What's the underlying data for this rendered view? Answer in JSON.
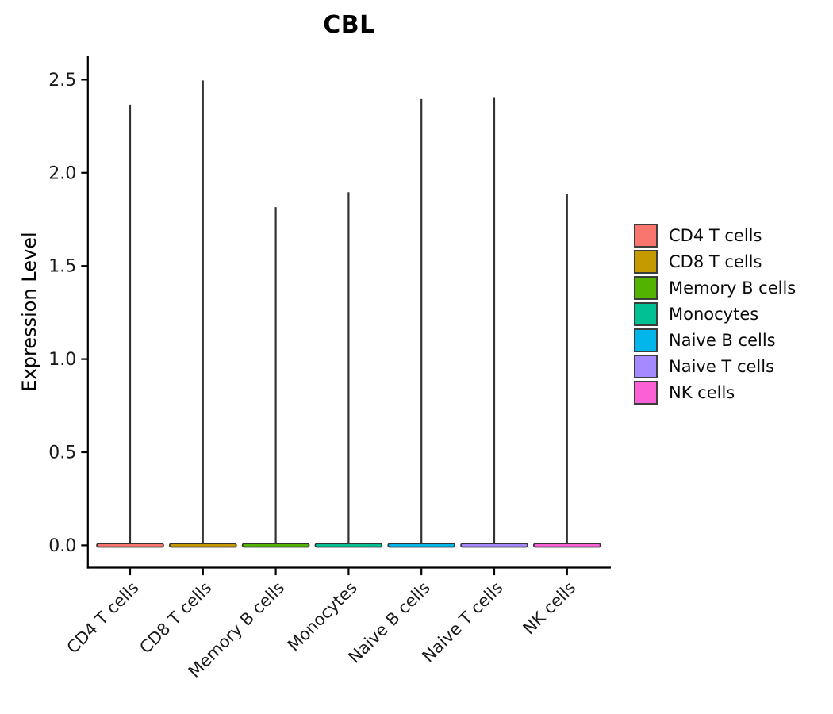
{
  "chart_data": {
    "type": "violin",
    "title": "CBL",
    "xlabel": "",
    "ylabel": "Expression Level",
    "categories": [
      "CD4 T cells",
      "CD8 T cells",
      "Memory B cells",
      "Monocytes",
      "Naive B cells",
      "Naive T cells",
      "NK cells"
    ],
    "series": [
      {
        "name": "CD4 T cells",
        "color": "#F8766D",
        "max_expression": 2.37
      },
      {
        "name": "CD8 T cells",
        "color": "#C49A00",
        "max_expression": 2.5
      },
      {
        "name": "Memory B cells",
        "color": "#53B400",
        "max_expression": 1.82
      },
      {
        "name": "Monocytes",
        "color": "#00C094",
        "max_expression": 1.9
      },
      {
        "name": "Naive B cells",
        "color": "#00B6EB",
        "max_expression": 2.4
      },
      {
        "name": "Naive T cells",
        "color": "#A58AFF",
        "max_expression": 2.41
      },
      {
        "name": "NK cells",
        "color": "#FB61D7",
        "max_expression": 1.89
      }
    ],
    "violin_shape_note": "extremely narrow violins: density concentrated at 0 (wide flat base bar) with a thin vertical spike reaching the max expression value",
    "y_ticks": [
      "0.0",
      "0.5",
      "1.0",
      "1.5",
      "2.0",
      "2.5"
    ],
    "y_tick_values": [
      0,
      0.5,
      1.0,
      1.5,
      2.0,
      2.5
    ],
    "ylim": [
      0,
      2.5
    ],
    "grid": "off",
    "x_label_angle": 45,
    "legend_position": "right",
    "axis_color": "#000000",
    "violin_stroke_color": "#333333",
    "tick_label_color": "#1a1a1a"
  }
}
